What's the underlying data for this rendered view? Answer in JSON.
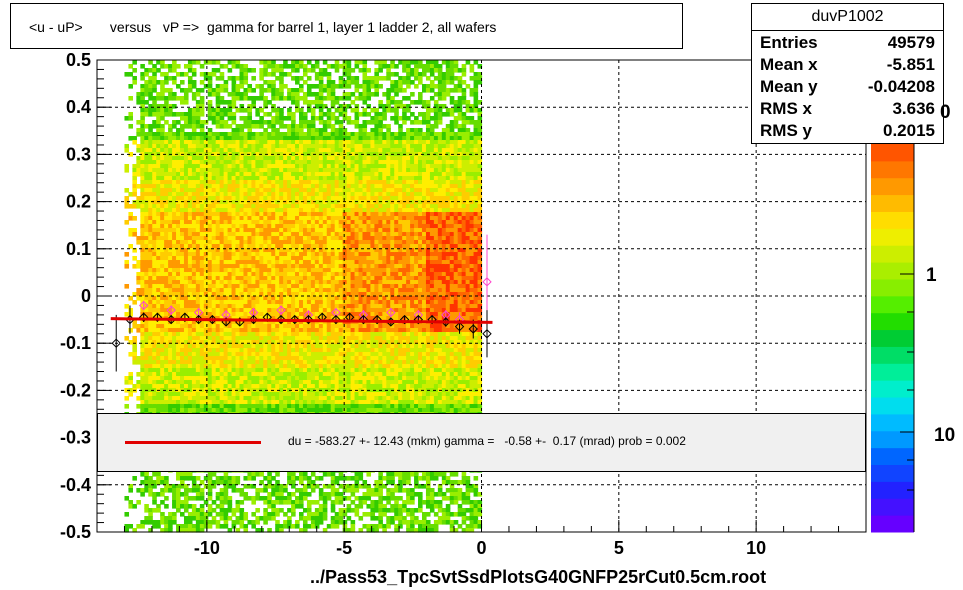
{
  "title": "<u - uP>       versus   vP =>  gamma for barrel 1, layer 1 ladder 2, all wafers",
  "stats": {
    "name": "duvP1002",
    "rows": [
      {
        "k": "Entries",
        "v": "49579"
      },
      {
        "k": "Mean x",
        "v": "-5.851"
      },
      {
        "k": "Mean y",
        "v": "-0.04208"
      },
      {
        "k": "RMS x",
        "v": "3.636"
      },
      {
        "k": "RMS y",
        "v": "0.2015"
      }
    ]
  },
  "fit_text": "du = -583.27 +- 12.43 (mkm) gamma =   -0.58 +-  0.17 (mrad) prob = 0.002",
  "x_title": "../Pass53_TpcSvtSsdPlotsG40GNFP25rCut0.5cm.root",
  "color_scale_labels": [
    "1",
    "10"
  ],
  "color_scale_top_label": "0",
  "colors": {
    "fit_line": "#e00000",
    "profile_points": "#000000",
    "profile_points_alt": "#ff44cc"
  },
  "chart_data": {
    "type": "heatmap",
    "xlim": [
      -14,
      14
    ],
    "ylim": [
      -0.5,
      0.5
    ],
    "x_ticks": [
      -10,
      -5,
      0,
      5,
      10
    ],
    "y_ticks": [
      0.5,
      0.4,
      0.3,
      0.2,
      0.1,
      0,
      -0.1,
      -0.2,
      -0.3,
      -0.4,
      -0.5
    ],
    "grid": true,
    "log_z": true,
    "occupied_x_range": [
      -13,
      0
    ],
    "fit_line": {
      "x": [
        -13.5,
        0.4
      ],
      "y": [
        -0.048,
        -0.056
      ]
    },
    "profile": {
      "x": [
        -13.3,
        -12.8,
        -12.3,
        -11.8,
        -11.3,
        -10.8,
        -10.3,
        -9.8,
        -9.3,
        -8.8,
        -8.3,
        -7.8,
        -7.3,
        -6.8,
        -6.3,
        -5.8,
        -5.3,
        -4.8,
        -4.3,
        -3.8,
        -3.3,
        -2.8,
        -2.3,
        -1.8,
        -1.3,
        -0.8,
        -0.3,
        0.2
      ],
      "y": [
        -0.1,
        -0.05,
        -0.045,
        -0.045,
        -0.05,
        -0.045,
        -0.05,
        -0.05,
        -0.055,
        -0.055,
        -0.05,
        -0.045,
        -0.05,
        -0.05,
        -0.05,
        -0.045,
        -0.05,
        -0.045,
        -0.05,
        -0.05,
        -0.055,
        -0.05,
        -0.05,
        -0.05,
        -0.055,
        -0.065,
        -0.07,
        -0.08
      ],
      "err": [
        0.06,
        0.03,
        0.01,
        0.008,
        0.008,
        0.008,
        0.008,
        0.008,
        0.008,
        0.008,
        0.008,
        0.008,
        0.008,
        0.008,
        0.008,
        0.008,
        0.008,
        0.008,
        0.008,
        0.008,
        0.008,
        0.008,
        0.008,
        0.008,
        0.01,
        0.015,
        0.02,
        0.05
      ]
    },
    "profile_alt": {
      "x": [
        -12.3,
        -11.3,
        -10.3,
        -9.3,
        -8.3,
        -7.3,
        -6.3,
        -5.3,
        -4.3,
        -3.3,
        -2.3,
        -1.3,
        -0.8,
        0.2
      ],
      "y": [
        -0.02,
        -0.03,
        -0.035,
        -0.04,
        -0.035,
        -0.03,
        -0.04,
        -0.035,
        -0.04,
        -0.035,
        -0.04,
        -0.04,
        -0.05,
        0.03
      ],
      "err": [
        0.01,
        0.01,
        0.01,
        0.01,
        0.01,
        0.01,
        0.01,
        0.01,
        0.01,
        0.01,
        0.01,
        0.01,
        0.015,
        0.1
      ]
    }
  }
}
